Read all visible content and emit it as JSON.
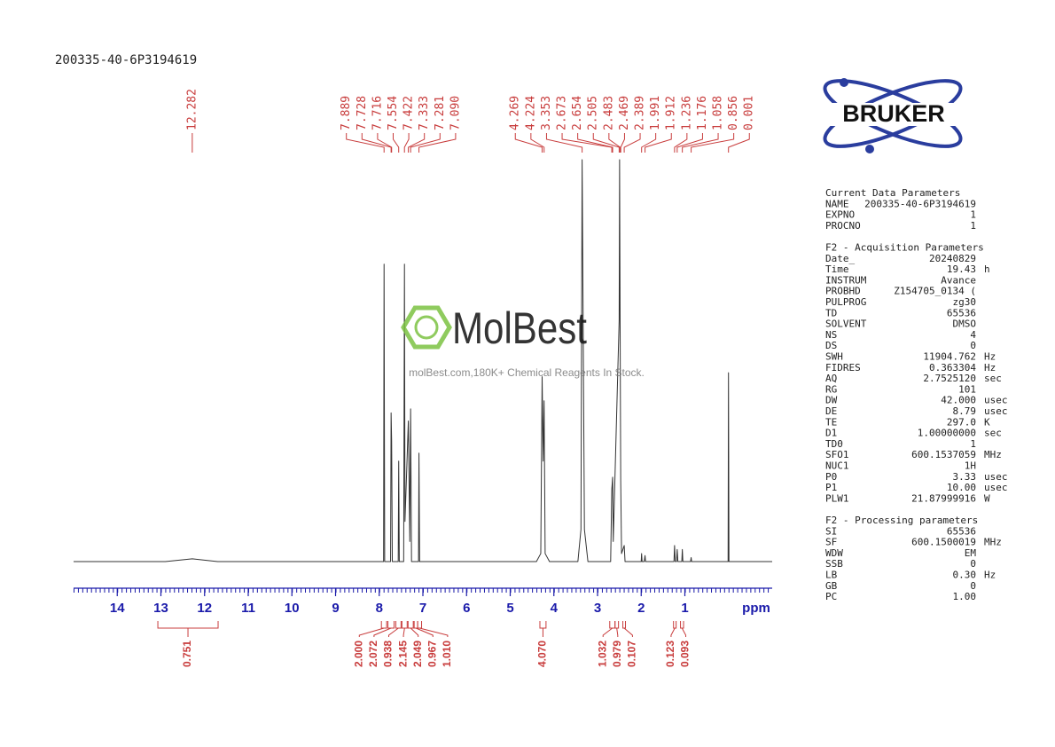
{
  "chart_data": {
    "type": "nmr",
    "title": "200335-40-6P3194619",
    "x_label": "ppm",
    "xlim": [
      15,
      -1
    ],
    "xticks": [
      14,
      13,
      12,
      11,
      10,
      9,
      8,
      7,
      6,
      5,
      4,
      3,
      2,
      1
    ],
    "ylim": [
      0,
      100
    ],
    "line_color": "#333333",
    "axis_color": "#1a1aaa",
    "peak_color": "#c83c3c",
    "spectrum": {
      "x": [
        15,
        12.9,
        12.282,
        11.7,
        8.0,
        7.9,
        7.889,
        7.875,
        7.74,
        7.728,
        7.716,
        7.7,
        7.565,
        7.554,
        7.54,
        7.44,
        7.422,
        7.41,
        7.333,
        7.3,
        7.281,
        7.26,
        7.1,
        7.09,
        7.075,
        4.4,
        4.3,
        4.269,
        4.245,
        4.224,
        4.2,
        4.1,
        3.45,
        3.38,
        3.353,
        3.3,
        3.22,
        2.7,
        2.673,
        2.654,
        2.64,
        2.505,
        2.495,
        2.483,
        2.469,
        2.45,
        2.389,
        2.37,
        2.0,
        1.991,
        1.98,
        1.93,
        1.912,
        1.9,
        1.25,
        1.236,
        1.22,
        1.19,
        1.176,
        1.16,
        1.07,
        1.058,
        1.045,
        0.87,
        0.856,
        0.845,
        0.01,
        0.001,
        -0.01,
        -1
      ],
      "y": [
        0,
        0,
        0.7,
        0,
        0,
        0,
        74,
        0,
        0,
        37,
        30,
        0,
        0,
        25,
        0,
        0,
        74,
        10,
        35,
        5,
        38,
        0,
        0,
        27,
        0,
        0,
        2,
        46,
        25,
        40,
        2,
        0,
        0,
        8,
        100,
        8,
        0,
        0,
        18,
        21,
        5,
        60,
        100,
        60,
        20,
        2,
        4,
        0,
        0,
        2,
        0,
        0,
        1.5,
        0,
        0,
        4,
        0,
        0,
        3,
        0,
        0,
        3,
        0,
        0,
        1,
        0,
        0,
        47,
        0,
        0
      ]
    },
    "peaks": {
      "values": [
        12.282,
        7.889,
        7.728,
        7.716,
        7.554,
        7.422,
        7.333,
        7.281,
        7.09,
        4.269,
        4.224,
        3.353,
        2.673,
        2.654,
        2.505,
        2.483,
        2.469,
        2.389,
        1.991,
        1.912,
        1.236,
        1.176,
        1.058,
        0.856,
        0.001
      ],
      "value_labels": [
        "12.282",
        "7.889",
        "7.728",
        "7.716",
        "7.554",
        "7.422",
        "7.333",
        "7.281",
        "7.090",
        "4.269",
        "4.224",
        "3.353",
        "2.673",
        "2.654",
        "2.505",
        "2.483",
        "2.469",
        "2.389",
        "1.991",
        "1.912",
        "1.236",
        "1.176",
        "1.058",
        "0.856",
        "0.001"
      ]
    },
    "integrals": {
      "ranges": [
        [
          13.07,
          11.69
        ],
        [
          7.95,
          7.83
        ],
        [
          7.8,
          7.66
        ],
        [
          7.62,
          7.5
        ],
        [
          7.48,
          7.36
        ],
        [
          7.34,
          7.22
        ],
        [
          7.2,
          7.12
        ],
        [
          7.12,
          7.03
        ],
        [
          4.32,
          4.18
        ],
        [
          2.72,
          2.6
        ],
        [
          2.6,
          2.52
        ],
        [
          2.42,
          2.36
        ],
        [
          1.26,
          1.2
        ],
        [
          1.1,
          1.03
        ]
      ],
      "values": [
        0.751,
        2,
        2.072,
        0.938,
        2.145,
        2.049,
        0.967,
        1.01,
        4.07,
        1.032,
        0.979,
        0.107,
        0.123,
        0.093
      ],
      "value_labels": [
        "0.751",
        "2.000",
        "2.072",
        "0.938",
        "2.145",
        "2.049",
        "0.967",
        "1.010",
        "4.070",
        "1.032",
        "0.979",
        "0.107",
        "0.123",
        "0.093"
      ]
    }
  },
  "logo": {
    "text": "BRUKER"
  },
  "watermark": {
    "brand": "MolBest",
    "tagline": "molBest.com,180K+ Chemical Reagents In Stock."
  },
  "parameters": [
    {
      "title": "Current Data Parameters",
      "rows": [
        [
          "NAME",
          "200335-40-6P3194619"
        ],
        [
          "EXPNO",
          "1"
        ],
        [
          "PROCNO",
          "1"
        ]
      ]
    },
    {
      "title": "F2 - Acquisition Parameters",
      "rows": [
        [
          "Date_",
          "20240829"
        ],
        [
          "Time",
          "19.43",
          "h"
        ],
        [
          "INSTRUM",
          "Avance"
        ],
        [
          "PROBHD",
          "Z154705_0134 ("
        ],
        [
          "PULPROG",
          "zg30"
        ],
        [
          "TD",
          "65536"
        ],
        [
          "SOLVENT",
          "DMSO"
        ],
        [
          "NS",
          "4"
        ],
        [
          "DS",
          "0"
        ],
        [
          "SWH",
          "11904.762",
          "Hz"
        ],
        [
          "FIDRES",
          "0.363304",
          "Hz"
        ],
        [
          "AQ",
          "2.7525120",
          "sec"
        ],
        [
          "RG",
          "101"
        ],
        [
          "DW",
          "42.000",
          "usec"
        ],
        [
          "DE",
          "8.79",
          "usec"
        ],
        [
          "TE",
          "297.0",
          "K"
        ],
        [
          "D1",
          "1.00000000",
          "sec"
        ],
        [
          "TD0",
          "1"
        ],
        [
          "SFO1",
          "600.1537059",
          "MHz"
        ],
        [
          "NUC1",
          "1H"
        ],
        [
          "P0",
          "3.33",
          "usec"
        ],
        [
          "P1",
          "10.00",
          "usec"
        ],
        [
          "PLW1",
          "21.87999916",
          "W"
        ]
      ]
    },
    {
      "title": "F2 - Processing parameters",
      "rows": [
        [
          "SI",
          "65536"
        ],
        [
          "SF",
          "600.1500019",
          "MHz"
        ],
        [
          "WDW",
          "EM"
        ],
        [
          "SSB",
          "0"
        ],
        [
          "LB",
          "0.30",
          "Hz"
        ],
        [
          "GB",
          "0"
        ],
        [
          "PC",
          "1.00"
        ]
      ]
    }
  ]
}
